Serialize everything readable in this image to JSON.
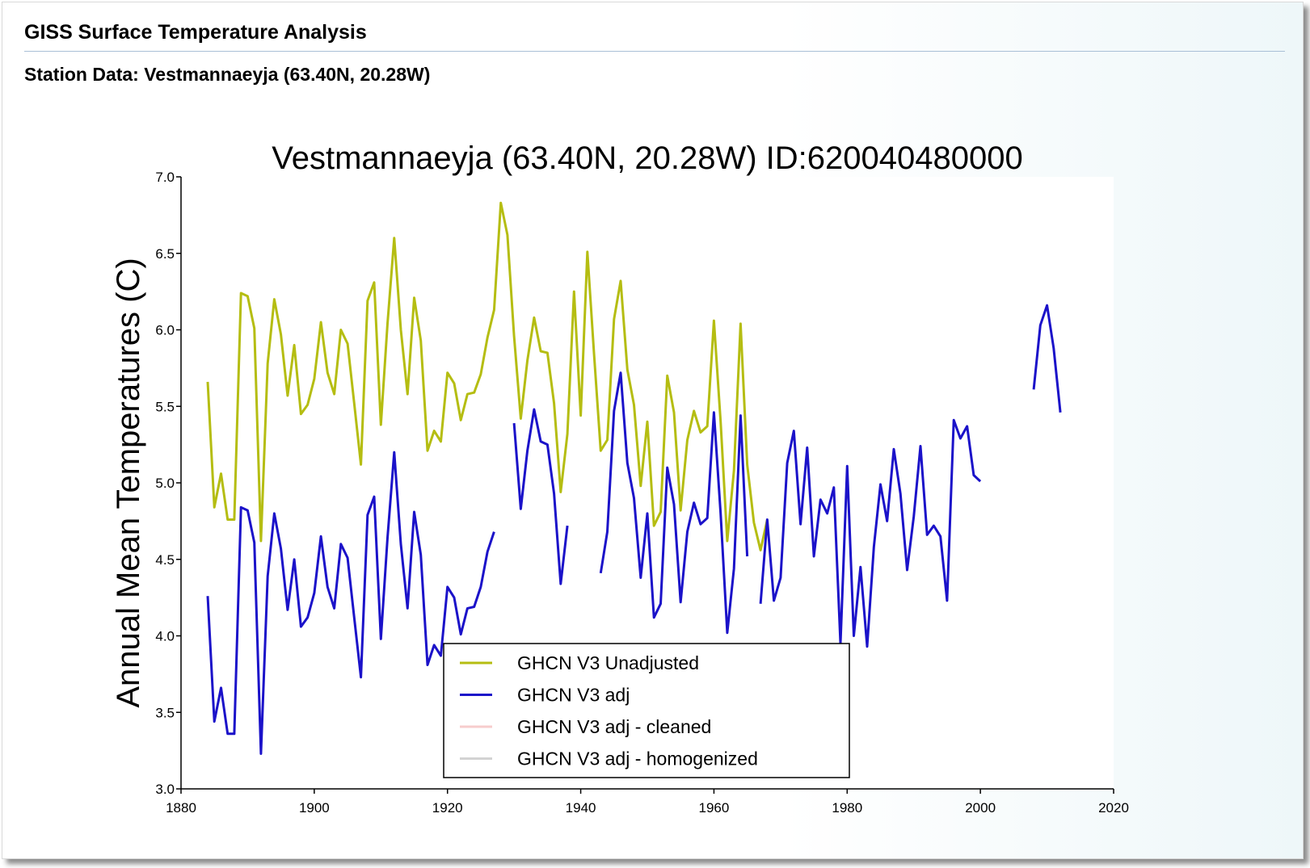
{
  "header": {
    "title": "GISS Surface Temperature Analysis",
    "subtitle": "Station Data: Vestmannaeyja (63.40N, 20.28W)"
  },
  "colors": {
    "unadjusted": "#b5bd12",
    "adj": "#1b12c9",
    "cleaned": "#f7cccc",
    "homogenized": "#d3d3d3"
  },
  "chart_data": {
    "type": "line",
    "title": "Vestmannaeyja (63.40N, 20.28W) ID:620040480000",
    "xlabel": "",
    "ylabel": "Annual Mean Temperatures (C)",
    "xlim": [
      1880,
      2020
    ],
    "ylim": [
      3.0,
      7.0
    ],
    "xticks": [
      "1880",
      "1900",
      "1920",
      "1940",
      "1960",
      "1980",
      "2000",
      "2020"
    ],
    "yticks": [
      "3.0",
      "3.5",
      "4.0",
      "4.5",
      "5.0",
      "5.5",
      "6.0",
      "6.5",
      "7.0"
    ],
    "grid": false,
    "legend_position": "bottom-center",
    "series": [
      {
        "name": "GHCN V3 Unadjusted",
        "color": "#b5bd12",
        "segments": [
          [
            [
              1884,
              5.66
            ],
            [
              1885,
              4.84
            ],
            [
              1886,
              5.06
            ],
            [
              1887,
              4.76
            ],
            [
              1888,
              4.76
            ],
            [
              1889,
              6.24
            ],
            [
              1890,
              6.22
            ],
            [
              1891,
              6.01
            ],
            [
              1892,
              4.62
            ],
            [
              1893,
              5.78
            ],
            [
              1894,
              6.2
            ],
            [
              1895,
              5.97
            ],
            [
              1896,
              5.57
            ],
            [
              1897,
              5.9
            ],
            [
              1898,
              5.45
            ],
            [
              1899,
              5.51
            ],
            [
              1900,
              5.68
            ],
            [
              1901,
              6.05
            ],
            [
              1902,
              5.72
            ],
            [
              1903,
              5.58
            ],
            [
              1904,
              6.0
            ],
            [
              1905,
              5.91
            ],
            [
              1906,
              5.52
            ],
            [
              1907,
              5.12
            ],
            [
              1908,
              6.19
            ],
            [
              1909,
              6.31
            ],
            [
              1910,
              5.38
            ],
            [
              1911,
              6.04
            ],
            [
              1912,
              6.6
            ],
            [
              1913,
              6.0
            ],
            [
              1914,
              5.58
            ],
            [
              1915,
              6.21
            ],
            [
              1916,
              5.93
            ],
            [
              1917,
              5.21
            ],
            [
              1918,
              5.34
            ],
            [
              1919,
              5.27
            ],
            [
              1920,
              5.72
            ],
            [
              1921,
              5.65
            ],
            [
              1922,
              5.41
            ],
            [
              1923,
              5.58
            ],
            [
              1924,
              5.59
            ],
            [
              1925,
              5.71
            ],
            [
              1926,
              5.95
            ],
            [
              1927,
              6.13
            ],
            [
              1928,
              6.83
            ],
            [
              1929,
              6.62
            ],
            [
              1930,
              5.96
            ],
            [
              1931,
              5.42
            ],
            [
              1932,
              5.8
            ],
            [
              1933,
              6.08
            ],
            [
              1934,
              5.86
            ],
            [
              1935,
              5.85
            ],
            [
              1936,
              5.52
            ],
            [
              1937,
              4.94
            ],
            [
              1938,
              5.32
            ],
            [
              1939,
              6.25
            ],
            [
              1940,
              5.44
            ],
            [
              1941,
              6.51
            ],
            [
              1942,
              5.84
            ],
            [
              1943,
              5.21
            ],
            [
              1944,
              5.28
            ],
            [
              1945,
              6.07
            ],
            [
              1946,
              6.32
            ],
            [
              1947,
              5.74
            ],
            [
              1948,
              5.51
            ],
            [
              1949,
              4.98
            ],
            [
              1950,
              5.4
            ],
            [
              1951,
              4.72
            ],
            [
              1952,
              4.81
            ],
            [
              1953,
              5.7
            ],
            [
              1954,
              5.46
            ],
            [
              1955,
              4.82
            ],
            [
              1956,
              5.28
            ],
            [
              1957,
              5.47
            ],
            [
              1958,
              5.33
            ],
            [
              1959,
              5.37
            ],
            [
              1960,
              6.06
            ],
            [
              1961,
              5.4
            ],
            [
              1962,
              4.62
            ],
            [
              1963,
              5.08
            ],
            [
              1964,
              6.04
            ],
            [
              1965,
              5.12
            ],
            [
              1966,
              4.74
            ],
            [
              1967,
              4.56
            ],
            [
              1968,
              4.76
            ]
          ]
        ]
      },
      {
        "name": "GHCN V3 adj",
        "color": "#1b12c9",
        "segments": [
          [
            [
              1884,
              4.26
            ],
            [
              1885,
              3.44
            ],
            [
              1886,
              3.66
            ],
            [
              1887,
              3.36
            ],
            [
              1888,
              3.36
            ],
            [
              1889,
              4.84
            ],
            [
              1890,
              4.82
            ],
            [
              1891,
              4.61
            ],
            [
              1892,
              3.23
            ],
            [
              1893,
              4.39
            ],
            [
              1894,
              4.8
            ],
            [
              1895,
              4.57
            ],
            [
              1896,
              4.17
            ],
            [
              1897,
              4.5
            ],
            [
              1898,
              4.06
            ],
            [
              1899,
              4.12
            ],
            [
              1900,
              4.28
            ],
            [
              1901,
              4.65
            ],
            [
              1902,
              4.32
            ],
            [
              1903,
              4.18
            ],
            [
              1904,
              4.6
            ],
            [
              1905,
              4.51
            ],
            [
              1906,
              4.12
            ],
            [
              1907,
              3.73
            ],
            [
              1908,
              4.79
            ],
            [
              1909,
              4.91
            ],
            [
              1910,
              3.98
            ],
            [
              1911,
              4.64
            ],
            [
              1912,
              5.2
            ],
            [
              1913,
              4.6
            ],
            [
              1914,
              4.18
            ],
            [
              1915,
              4.81
            ],
            [
              1916,
              4.53
            ],
            [
              1917,
              3.81
            ],
            [
              1918,
              3.94
            ],
            [
              1919,
              3.87
            ],
            [
              1920,
              4.32
            ],
            [
              1921,
              4.25
            ],
            [
              1922,
              4.01
            ],
            [
              1923,
              4.18
            ],
            [
              1924,
              4.19
            ],
            [
              1925,
              4.32
            ],
            [
              1926,
              4.55
            ],
            [
              1927,
              4.68
            ]
          ],
          [
            [
              1930,
              5.39
            ],
            [
              1931,
              4.83
            ],
            [
              1932,
              5.21
            ],
            [
              1933,
              5.48
            ],
            [
              1934,
              5.27
            ],
            [
              1935,
              5.25
            ],
            [
              1936,
              4.93
            ],
            [
              1937,
              4.34
            ],
            [
              1938,
              4.72
            ]
          ],
          [
            [
              1943,
              4.41
            ],
            [
              1944,
              4.68
            ],
            [
              1945,
              5.47
            ],
            [
              1946,
              5.72
            ],
            [
              1947,
              5.13
            ],
            [
              1948,
              4.9
            ],
            [
              1949,
              4.38
            ],
            [
              1950,
              4.8
            ],
            [
              1951,
              4.12
            ],
            [
              1952,
              4.21
            ],
            [
              1953,
              5.1
            ],
            [
              1954,
              4.86
            ],
            [
              1955,
              4.22
            ],
            [
              1956,
              4.68
            ],
            [
              1957,
              4.87
            ],
            [
              1958,
              4.73
            ],
            [
              1959,
              4.77
            ],
            [
              1960,
              5.46
            ],
            [
              1961,
              4.8
            ],
            [
              1962,
              4.02
            ],
            [
              1963,
              4.44
            ],
            [
              1964,
              5.44
            ],
            [
              1965,
              4.52
            ]
          ],
          [
            [
              1967,
              4.21
            ],
            [
              1968,
              4.76
            ],
            [
              1969,
              4.23
            ],
            [
              1970,
              4.38
            ],
            [
              1971,
              5.13
            ],
            [
              1972,
              5.34
            ],
            [
              1973,
              4.73
            ],
            [
              1974,
              5.23
            ],
            [
              1975,
              4.52
            ],
            [
              1976,
              4.89
            ],
            [
              1977,
              4.8
            ],
            [
              1978,
              4.97
            ],
            [
              1979,
              3.95
            ],
            [
              1980,
              5.11
            ],
            [
              1981,
              4.0
            ],
            [
              1982,
              4.45
            ],
            [
              1983,
              3.93
            ],
            [
              1984,
              4.58
            ],
            [
              1985,
              4.99
            ],
            [
              1986,
              4.75
            ],
            [
              1987,
              5.22
            ],
            [
              1988,
              4.93
            ],
            [
              1989,
              4.43
            ],
            [
              1990,
              4.78
            ],
            [
              1991,
              5.24
            ],
            [
              1992,
              4.66
            ],
            [
              1993,
              4.72
            ],
            [
              1994,
              4.65
            ],
            [
              1995,
              4.23
            ],
            [
              1996,
              5.41
            ],
            [
              1997,
              5.29
            ],
            [
              1998,
              5.37
            ],
            [
              1999,
              5.05
            ],
            [
              2000,
              5.01
            ]
          ],
          [
            [
              2008,
              5.61
            ],
            [
              2009,
              6.03
            ],
            [
              2010,
              6.16
            ],
            [
              2011,
              5.88
            ],
            [
              2012,
              5.46
            ]
          ]
        ]
      },
      {
        "name": "GHCN V3 adj - cleaned",
        "color": "#f7cccc",
        "segments": []
      },
      {
        "name": "GHCN V3 adj - homogenized",
        "color": "#d3d3d3",
        "segments": []
      }
    ]
  }
}
